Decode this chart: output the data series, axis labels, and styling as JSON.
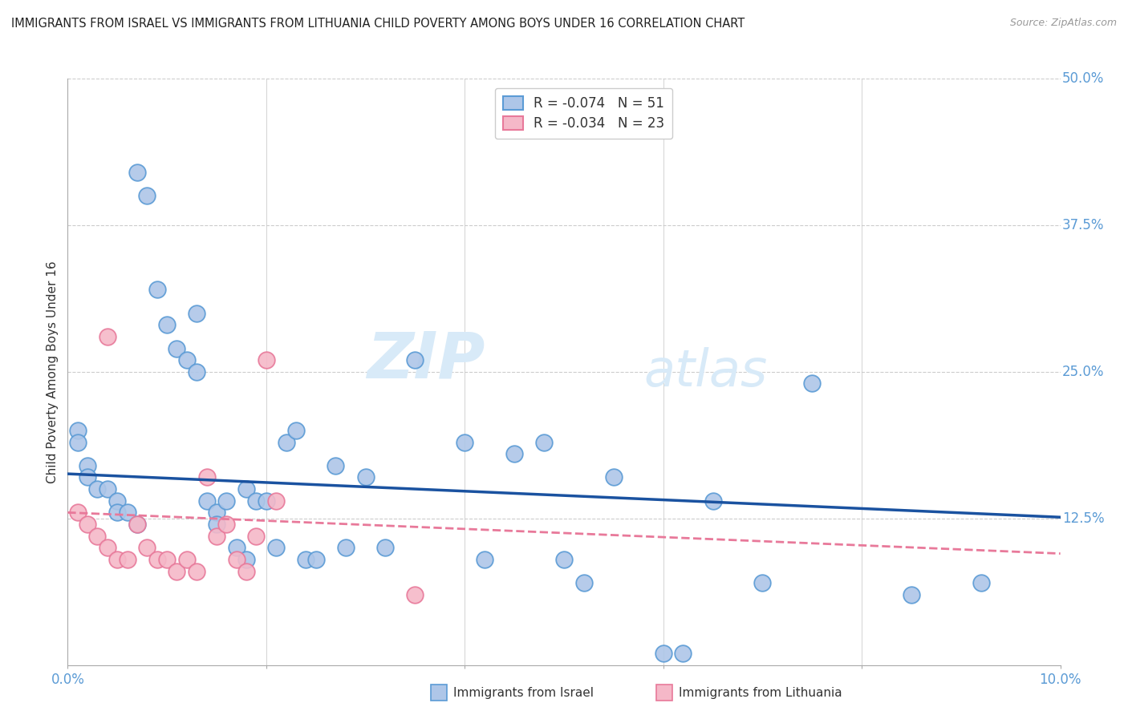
{
  "title": "IMMIGRANTS FROM ISRAEL VS IMMIGRANTS FROM LITHUANIA CHILD POVERTY AMONG BOYS UNDER 16 CORRELATION CHART",
  "source": "Source: ZipAtlas.com",
  "ylabel": "Child Poverty Among Boys Under 16",
  "xlim": [
    0.0,
    0.1
  ],
  "ylim": [
    0.0,
    0.5
  ],
  "grid_color": "#cccccc",
  "background_color": "#ffffff",
  "israel_color": "#aec6e8",
  "lithuania_color": "#f5b8c8",
  "israel_edge_color": "#5b9bd5",
  "lithuania_edge_color": "#e8799a",
  "trend_israel_color": "#1a52a0",
  "trend_lithuania_color": "#e8799a",
  "legend_label_israel": "R = -0.074   N = 51",
  "legend_label_lithuania": "R = -0.034   N = 23",
  "watermark_zip": "ZIP",
  "watermark_atlas": "atlas",
  "israel_x": [
    0.001,
    0.001,
    0.002,
    0.002,
    0.003,
    0.004,
    0.005,
    0.005,
    0.006,
    0.007,
    0.007,
    0.008,
    0.009,
    0.01,
    0.011,
    0.012,
    0.013,
    0.013,
    0.014,
    0.015,
    0.015,
    0.016,
    0.017,
    0.018,
    0.018,
    0.019,
    0.02,
    0.021,
    0.022,
    0.023,
    0.024,
    0.025,
    0.027,
    0.028,
    0.03,
    0.032,
    0.035,
    0.04,
    0.042,
    0.045,
    0.048,
    0.05,
    0.052,
    0.055,
    0.06,
    0.062,
    0.065,
    0.07,
    0.075,
    0.085,
    0.092
  ],
  "israel_y": [
    0.2,
    0.19,
    0.17,
    0.16,
    0.15,
    0.15,
    0.14,
    0.13,
    0.13,
    0.12,
    0.42,
    0.4,
    0.32,
    0.29,
    0.27,
    0.26,
    0.25,
    0.3,
    0.14,
    0.13,
    0.12,
    0.14,
    0.1,
    0.09,
    0.15,
    0.14,
    0.14,
    0.1,
    0.19,
    0.2,
    0.09,
    0.09,
    0.17,
    0.1,
    0.16,
    0.1,
    0.26,
    0.19,
    0.09,
    0.18,
    0.19,
    0.09,
    0.07,
    0.16,
    0.01,
    0.01,
    0.14,
    0.07,
    0.24,
    0.06,
    0.07
  ],
  "lithuania_x": [
    0.001,
    0.002,
    0.003,
    0.004,
    0.004,
    0.005,
    0.006,
    0.007,
    0.008,
    0.009,
    0.01,
    0.011,
    0.012,
    0.013,
    0.014,
    0.015,
    0.016,
    0.017,
    0.018,
    0.019,
    0.02,
    0.021,
    0.035
  ],
  "lithuania_y": [
    0.13,
    0.12,
    0.11,
    0.1,
    0.28,
    0.09,
    0.09,
    0.12,
    0.1,
    0.09,
    0.09,
    0.08,
    0.09,
    0.08,
    0.16,
    0.11,
    0.12,
    0.09,
    0.08,
    0.11,
    0.26,
    0.14,
    0.06
  ],
  "trend_israel_x0": 0.0,
  "trend_israel_x1": 0.1,
  "trend_israel_y0": 0.163,
  "trend_israel_y1": 0.126,
  "trend_lith_x0": 0.0,
  "trend_lith_x1": 0.1,
  "trend_lith_y0": 0.13,
  "trend_lith_y1": 0.095
}
